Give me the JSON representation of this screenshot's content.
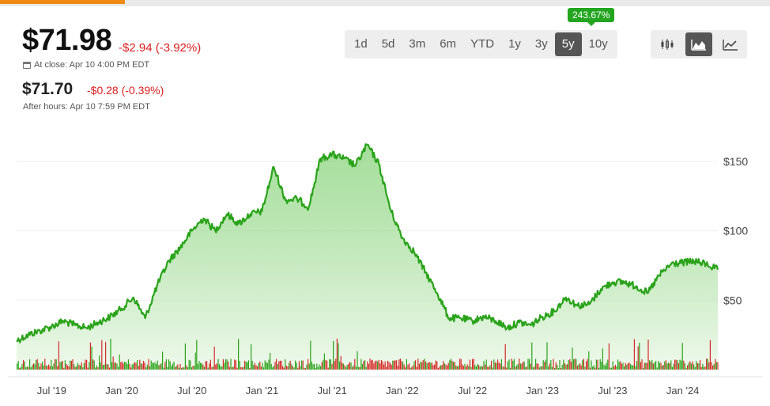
{
  "quote": {
    "price": "$71.98",
    "change": "-$2.94 (-3.92%)",
    "close_label": "At close: Apr 10 4:00 PM EDT",
    "after_price": "$71.70",
    "after_change": "-$0.28 (-0.39%)",
    "after_label": "After hours: Apr 10 7:59 PM EDT"
  },
  "range": {
    "selected_change": "243.67%",
    "buttons": [
      "1d",
      "5d",
      "3m",
      "6m",
      "YTD",
      "1y",
      "3y",
      "5y",
      "10y"
    ],
    "selected": "5y"
  },
  "chart_type_buttons": [
    "candlestick-icon",
    "mountain-icon",
    "line-icon"
  ],
  "chart_type_selected": "mountain-icon",
  "colors": {
    "line": "#2aa31a",
    "up_volume": "#2aa31a",
    "down_volume": "#d62a2a",
    "accent": "#f08a14"
  },
  "chart_data": {
    "type": "area",
    "x_start": "2019-04",
    "x_end": "2024-04",
    "ylim": [
      0,
      175
    ],
    "y_ticks": [
      {
        "value": 150,
        "label": "$150"
      },
      {
        "value": 100,
        "label": "$100"
      },
      {
        "value": 50,
        "label": "$50"
      }
    ],
    "x_ticks": [
      {
        "date": "2019-07",
        "label": "Jul '19"
      },
      {
        "date": "2020-01",
        "label": "Jan '20"
      },
      {
        "date": "2020-07",
        "label": "Jul '20"
      },
      {
        "date": "2021-01",
        "label": "Jan '21"
      },
      {
        "date": "2021-07",
        "label": "Jul '21"
      },
      {
        "date": "2022-01",
        "label": "Jan '22"
      },
      {
        "date": "2022-07",
        "label": "Jul '22"
      },
      {
        "date": "2023-01",
        "label": "Jan '23"
      },
      {
        "date": "2023-07",
        "label": "Jul '23"
      },
      {
        "date": "2024-01",
        "label": "Jan '24"
      }
    ],
    "series": [
      {
        "points": [
          [
            "2019-04",
            21
          ],
          [
            "2019-05",
            25
          ],
          [
            "2019-06",
            28
          ],
          [
            "2019-07",
            31
          ],
          [
            "2019-08",
            35
          ],
          [
            "2019-09",
            32
          ],
          [
            "2019-10",
            30
          ],
          [
            "2019-11",
            34
          ],
          [
            "2019-12",
            38
          ],
          [
            "2020-01",
            44
          ],
          [
            "2020-02",
            52
          ],
          [
            "2020-03",
            37
          ],
          [
            "2020-04",
            60
          ],
          [
            "2020-05",
            78
          ],
          [
            "2020-06",
            88
          ],
          [
            "2020-07",
            100
          ],
          [
            "2020-08",
            109
          ],
          [
            "2020-09",
            100
          ],
          [
            "2020-10",
            112
          ],
          [
            "2020-11",
            105
          ],
          [
            "2020-12",
            112
          ],
          [
            "2021-01",
            114
          ],
          [
            "2021-02",
            146
          ],
          [
            "2021-03",
            122
          ],
          [
            "2021-04",
            123
          ],
          [
            "2021-05",
            117
          ],
          [
            "2021-06",
            152
          ],
          [
            "2021-07",
            155
          ],
          [
            "2021-08",
            152
          ],
          [
            "2021-09",
            147
          ],
          [
            "2021-10",
            162
          ],
          [
            "2021-11",
            148
          ],
          [
            "2021-12",
            115
          ],
          [
            "2022-01",
            95
          ],
          [
            "2022-02",
            85
          ],
          [
            "2022-03",
            70
          ],
          [
            "2022-04",
            55
          ],
          [
            "2022-05",
            37
          ],
          [
            "2022-06",
            37
          ],
          [
            "2022-07",
            35
          ],
          [
            "2022-08",
            38
          ],
          [
            "2022-09",
            35
          ],
          [
            "2022-10",
            30
          ],
          [
            "2022-11",
            34
          ],
          [
            "2022-12",
            32
          ],
          [
            "2023-01",
            38
          ],
          [
            "2023-02",
            42
          ],
          [
            "2023-03",
            52
          ],
          [
            "2023-04",
            46
          ],
          [
            "2023-05",
            47
          ],
          [
            "2023-06",
            58
          ],
          [
            "2023-07",
            63
          ],
          [
            "2023-08",
            63
          ],
          [
            "2023-09",
            60
          ],
          [
            "2023-10",
            55
          ],
          [
            "2023-11",
            68
          ],
          [
            "2023-12",
            76
          ],
          [
            "2024-01",
            77
          ],
          [
            "2024-02",
            78
          ],
          [
            "2024-03",
            76
          ],
          [
            "2024-04",
            72
          ]
        ]
      }
    ]
  }
}
